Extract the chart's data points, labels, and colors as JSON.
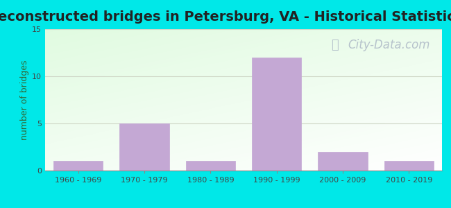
{
  "title": "Reconstructed bridges in Petersburg, VA - Historical Statistics",
  "categories": [
    "1960 - 1969",
    "1970 - 1979",
    "1980 - 1989",
    "1990 - 1999",
    "2000 - 2009",
    "2010 - 2019"
  ],
  "values": [
    1,
    5,
    1,
    12,
    2,
    1
  ],
  "bar_color": "#c4a8d4",
  "bar_edgecolor": "#c4a8d4",
  "ylabel": "number of bridges",
  "ylim": [
    0,
    15
  ],
  "yticks": [
    0,
    5,
    10,
    15
  ],
  "grid_color": "#d0d8c8",
  "outer_bg_color": "#00e8e8",
  "title_fontsize": 14,
  "axis_label_fontsize": 9,
  "tick_fontsize": 8,
  "watermark_text": "City-Data.com",
  "watermark_color": "#b0bcc8",
  "watermark_fontsize": 12
}
